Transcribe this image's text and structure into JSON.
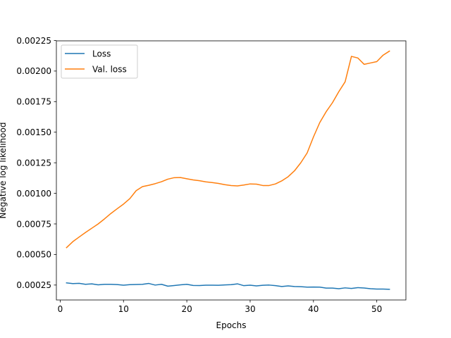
{
  "chart_data": {
    "type": "line",
    "title": "",
    "xlabel": "Epochs",
    "ylabel": "Negative log likelihood",
    "xlim": [
      -0.6,
      54.6
    ],
    "ylim": [
      0.000128,
      0.002247
    ],
    "xticks": [
      0,
      10,
      20,
      30,
      40,
      50
    ],
    "xtick_labels": [
      "0",
      "10",
      "20",
      "30",
      "40",
      "50"
    ],
    "yticks": [
      0.00025,
      0.0005,
      0.00075,
      0.001,
      0.00125,
      0.0015,
      0.00175,
      0.002,
      0.00225
    ],
    "ytick_labels": [
      "0.00025",
      "0.00050",
      "0.00075",
      "0.00100",
      "0.00125",
      "0.00150",
      "0.00175",
      "0.00200",
      "0.00225"
    ],
    "grid": false,
    "legend_position": "upper-left",
    "x": [
      1,
      2,
      3,
      4,
      5,
      6,
      7,
      8,
      9,
      10,
      11,
      12,
      13,
      14,
      15,
      16,
      17,
      18,
      19,
      20,
      21,
      22,
      23,
      24,
      25,
      26,
      27,
      28,
      29,
      30,
      31,
      32,
      33,
      34,
      35,
      36,
      37,
      38,
      39,
      40,
      41,
      42,
      43,
      44,
      45,
      46,
      47,
      48,
      49,
      50,
      51,
      52
    ],
    "series": [
      {
        "name": "Loss",
        "color": "#1f77b4",
        "values": [
          0.000268,
          0.000262,
          0.000264,
          0.000256,
          0.00026,
          0.000252,
          0.000256,
          0.000256,
          0.000254,
          0.000249,
          0.000253,
          0.000255,
          0.000256,
          0.000263,
          0.00025,
          0.000256,
          0.000241,
          0.000246,
          0.000252,
          0.000256,
          0.000247,
          0.000246,
          0.000249,
          0.000249,
          0.000248,
          0.000251,
          0.000253,
          0.00026,
          0.000245,
          0.000249,
          0.000243,
          0.000248,
          0.00025,
          0.000245,
          0.000238,
          0.000243,
          0.000238,
          0.000237,
          0.000233,
          0.000234,
          0.000233,
          0.000225,
          0.000225,
          0.00022,
          0.000227,
          0.000222,
          0.000229,
          0.000226,
          0.00022,
          0.000217,
          0.000217,
          0.000215
        ]
      },
      {
        "name": "Val. loss",
        "color": "#ff7f0e",
        "values": [
          0.000556,
          0.000605,
          0.000643,
          0.00068,
          0.000715,
          0.00075,
          0.000791,
          0.000835,
          0.000874,
          0.000912,
          0.000957,
          0.001022,
          0.001055,
          0.001066,
          0.001079,
          0.001095,
          0.001116,
          0.001128,
          0.001129,
          0.001119,
          0.00111,
          0.001103,
          0.001094,
          0.001088,
          0.001081,
          0.001071,
          0.001064,
          0.001061,
          0.001068,
          0.001077,
          0.001075,
          0.001064,
          0.001064,
          0.001077,
          0.001102,
          0.001136,
          0.001184,
          0.00125,
          0.00133,
          0.001461,
          0.001579,
          0.001667,
          0.001741,
          0.001831,
          0.001912,
          0.00212,
          0.002107,
          0.002055,
          0.002066,
          0.002077,
          0.00213,
          0.002163
        ]
      }
    ]
  }
}
